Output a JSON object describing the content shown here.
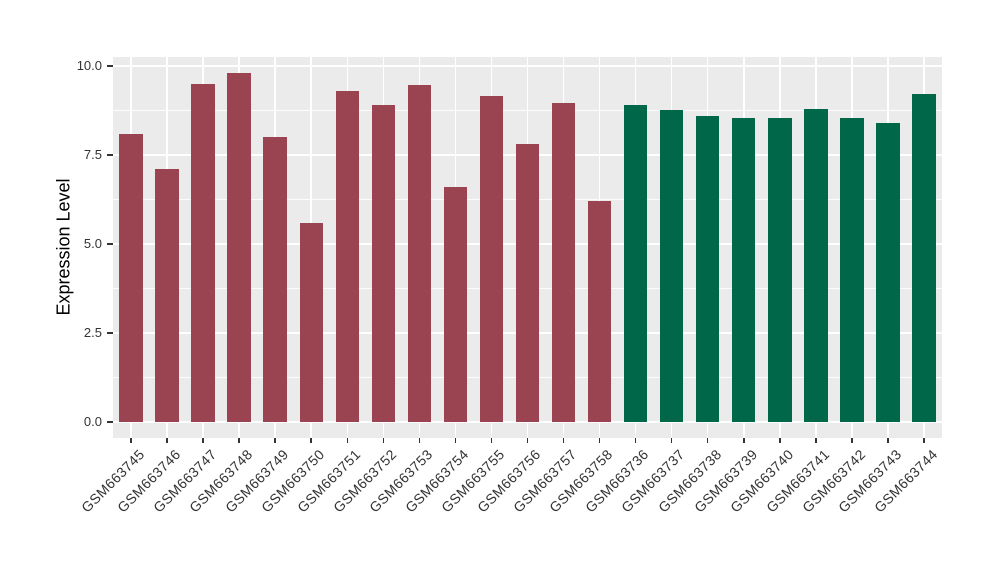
{
  "chart_data": {
    "type": "bar",
    "title": "",
    "xlabel": "",
    "ylabel": "Expression Level",
    "ylim": [
      -0.45,
      10.25
    ],
    "grid": true,
    "legend_position": "none",
    "yticks": [
      {
        "value": 0.0,
        "label": "0.0"
      },
      {
        "value": 2.5,
        "label": "2.5"
      },
      {
        "value": 5.0,
        "label": "5.0"
      },
      {
        "value": 7.5,
        "label": "7.5"
      },
      {
        "value": 10.0,
        "label": "10.0"
      }
    ],
    "minor_grid_values": [
      1.25,
      3.75,
      6.25,
      8.75
    ],
    "bars": [
      {
        "label": "GSM663745",
        "value": 8.1,
        "group": "group1"
      },
      {
        "label": "GSM663746",
        "value": 7.1,
        "group": "group1"
      },
      {
        "label": "GSM663747",
        "value": 9.5,
        "group": "group1"
      },
      {
        "label": "GSM663748",
        "value": 9.8,
        "group": "group1"
      },
      {
        "label": "GSM663749",
        "value": 8.0,
        "group": "group1"
      },
      {
        "label": "GSM663750",
        "value": 5.6,
        "group": "group1"
      },
      {
        "label": "GSM663751",
        "value": 9.3,
        "group": "group1"
      },
      {
        "label": "GSM663752",
        "value": 8.9,
        "group": "group1"
      },
      {
        "label": "GSM663753",
        "value": 9.45,
        "group": "group1"
      },
      {
        "label": "GSM663754",
        "value": 6.6,
        "group": "group1"
      },
      {
        "label": "GSM663755",
        "value": 9.15,
        "group": "group1"
      },
      {
        "label": "GSM663756",
        "value": 7.8,
        "group": "group1"
      },
      {
        "label": "GSM663757",
        "value": 8.95,
        "group": "group1"
      },
      {
        "label": "GSM663758",
        "value": 6.2,
        "group": "group1"
      },
      {
        "label": "GSM663736",
        "value": 8.9,
        "group": "group2"
      },
      {
        "label": "GSM663737",
        "value": 8.75,
        "group": "group2"
      },
      {
        "label": "GSM663738",
        "value": 8.6,
        "group": "group2"
      },
      {
        "label": "GSM663739",
        "value": 8.55,
        "group": "group2"
      },
      {
        "label": "GSM663740",
        "value": 8.55,
        "group": "group2"
      },
      {
        "label": "GSM663741",
        "value": 8.8,
        "group": "group2"
      },
      {
        "label": "GSM663742",
        "value": 8.55,
        "group": "group2"
      },
      {
        "label": "GSM663743",
        "value": 8.4,
        "group": "group2"
      },
      {
        "label": "GSM663744",
        "value": 9.2,
        "group": "group2"
      }
    ],
    "group_colors": {
      "group1": "#9A4452",
      "group2": "#006848"
    },
    "colors": {
      "panel_background": "#EBEBEB",
      "gridline": "#FFFFFF",
      "tick_mark": "#333333",
      "axis_text": "#333333",
      "axis_title": "#000000",
      "figure_background": "#FFFFFF"
    }
  }
}
